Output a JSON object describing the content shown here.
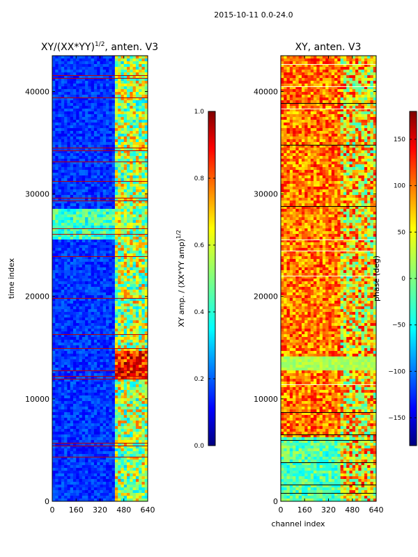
{
  "suptitle": "2015-10-11 0.0-24.0",
  "chart_data": [
    {
      "type": "heatmap",
      "title_main": "XY/(XX*YY)",
      "title_sup": "1/2",
      "title_rest": ", anten. V3",
      "xlabel": "",
      "ylabel": "time index",
      "xlim": [
        0,
        640
      ],
      "ylim": [
        0,
        43500
      ],
      "xticks": [
        "0",
        "160",
        "320",
        "480",
        "640"
      ],
      "yticks": [
        "0",
        "10000",
        "20000",
        "30000",
        "40000"
      ],
      "colorbar": {
        "label_main": "XY amp. / (XX*YY amp)",
        "label_sup": "1/2",
        "range": [
          0.0,
          1.0
        ],
        "ticks": [
          "0.0",
          "0.2",
          "0.4",
          "0.6",
          "0.8",
          "1.0"
        ]
      }
    },
    {
      "type": "heatmap",
      "title_main": "XY, anten. V3",
      "xlabel": "channel index",
      "ylabel": "",
      "xlim": [
        0,
        640
      ],
      "ylim": [
        0,
        43500
      ],
      "xticks": [
        "0",
        "160",
        "320",
        "480",
        "640"
      ],
      "yticks": [
        "0",
        "10000",
        "20000",
        "30000",
        "40000"
      ],
      "colorbar": {
        "label_main": "phase (deg)",
        "range": [
          -180,
          180
        ],
        "ticks": [
          "−150",
          "−100",
          "−50",
          "0",
          "50",
          "100",
          "150"
        ]
      }
    }
  ],
  "colormap": [
    "#00007f",
    "#0000ff",
    "#007fff",
    "#00ffff",
    "#7fff7f",
    "#ffff00",
    "#ff7f00",
    "#ff0000",
    "#7f0000"
  ]
}
